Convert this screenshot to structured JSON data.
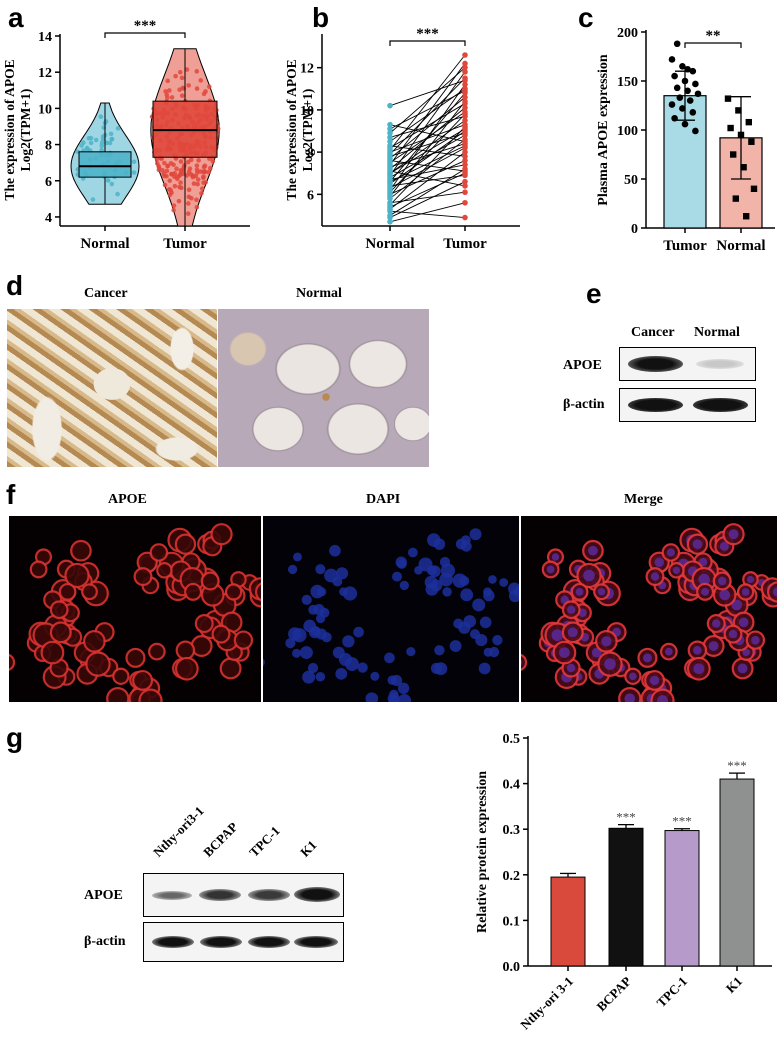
{
  "panels": {
    "a": {
      "letter": "a"
    },
    "b": {
      "letter": "b"
    },
    "c": {
      "letter": "c"
    },
    "d": {
      "letter": "d",
      "col_cancer": "Cancer",
      "col_normal": "Normal"
    },
    "e": {
      "letter": "e",
      "col_cancer": "Cancer",
      "col_normal": "Normal",
      "row_apoe": "APOE",
      "row_actin": "β-actin"
    },
    "f": {
      "letter": "f",
      "titles": [
        "APOE",
        "DAPI",
        "Merge"
      ]
    },
    "g": {
      "letter": "g",
      "lanes": [
        "Nthy-ori3-1",
        "BCPAP",
        "TPC-1",
        "K1"
      ],
      "row_apoe": "APOE",
      "row_actin": "β-actin"
    }
  },
  "colors": {
    "normal_blue": "#4db3c9",
    "tumor_red": "#e0483c",
    "bar_blue": "#a9dbe6",
    "bar_pink": "#f2b3a8",
    "g_red": "#d94a3d",
    "g_black": "#111111",
    "g_purple": "#b69ac9",
    "g_gray": "#8f9090"
  },
  "chart_data": [
    {
      "id": "a",
      "type": "violin-box",
      "ylabel_line1": "The expression of APOE",
      "ylabel_line2": "Log2(TPM+1)",
      "categories": [
        "Normal",
        "Tumor"
      ],
      "ylim": [
        3.5,
        14
      ],
      "yticks": [
        4,
        6,
        8,
        10,
        12,
        14
      ],
      "significance": "***",
      "box": [
        {
          "name": "Normal",
          "min": 4.7,
          "q1": 6.2,
          "median": 6.8,
          "q3": 7.6,
          "max": 10.3
        },
        {
          "name": "Tumor",
          "min": 3.5,
          "q1": 7.3,
          "median": 8.8,
          "q3": 10.4,
          "max": 13.3
        }
      ]
    },
    {
      "id": "b",
      "type": "paired-line",
      "ylabel_line1": "The expression of APOE",
      "ylabel_line2": "Log2(TPM+1)",
      "categories": [
        "Normal",
        "Tumor"
      ],
      "ylim": [
        4.5,
        13.5
      ],
      "yticks": [
        6,
        8,
        10,
        12
      ],
      "significance": "***",
      "pairs": [
        [
          4.7,
          5.6
        ],
        [
          4.9,
          6.6
        ],
        [
          5.0,
          7.2
        ],
        [
          5.2,
          4.9
        ],
        [
          5.3,
          8.0
        ],
        [
          5.4,
          7.0
        ],
        [
          5.5,
          9.2
        ],
        [
          5.6,
          6.1
        ],
        [
          5.8,
          8.6
        ],
        [
          5.9,
          10.4
        ],
        [
          6.0,
          7.6
        ],
        [
          6.1,
          9.8
        ],
        [
          6.2,
          11.2
        ],
        [
          6.3,
          8.2
        ],
        [
          6.4,
          6.9
        ],
        [
          6.5,
          9.0
        ],
        [
          6.6,
          10.8
        ],
        [
          6.7,
          7.4
        ],
        [
          6.8,
          8.8
        ],
        [
          6.9,
          11.8
        ],
        [
          7.0,
          9.5
        ],
        [
          7.1,
          6.4
        ],
        [
          7.2,
          10.1
        ],
        [
          7.3,
          8.4
        ],
        [
          7.4,
          12.2
        ],
        [
          7.5,
          9.9
        ],
        [
          7.6,
          7.1
        ],
        [
          7.7,
          10.6
        ],
        [
          7.8,
          8.9
        ],
        [
          7.9,
          11.5
        ],
        [
          8.0,
          9.3
        ],
        [
          8.1,
          12.6
        ],
        [
          8.2,
          10.3
        ],
        [
          8.3,
          7.8
        ],
        [
          8.5,
          11.0
        ],
        [
          8.7,
          9.7
        ],
        [
          8.9,
          12.0
        ],
        [
          9.1,
          10.9
        ],
        [
          9.3,
          8.5
        ],
        [
          10.2,
          11.4
        ],
        [
          7.0,
          9.1
        ],
        [
          6.6,
          8.3
        ]
      ]
    },
    {
      "id": "c",
      "type": "bar",
      "ylabel": "Plasma APOE expression",
      "categories": [
        "Tumor",
        "Normal"
      ],
      "values": [
        135,
        92
      ],
      "sd": [
        25,
        42
      ],
      "ylim": [
        0,
        200
      ],
      "yticks": [
        0,
        50,
        100,
        150,
        200
      ],
      "significance": "**",
      "points": [
        [
          172,
          165,
          160,
          155,
          150,
          147,
          143,
          140,
          137,
          133,
          130,
          126,
          122,
          118,
          112,
          106,
          99,
          188,
          162
        ],
        [
          132,
          120,
          108,
          102,
          95,
          88,
          75,
          62,
          40,
          30,
          12
        ]
      ]
    },
    {
      "id": "g",
      "type": "bar",
      "ylabel": "Relative protein expression",
      "categories": [
        "Nthy-ori 3-1",
        "BCPAP",
        "TPC-1",
        "K1"
      ],
      "values": [
        0.195,
        0.302,
        0.297,
        0.41
      ],
      "sd": [
        0.008,
        0.008,
        0.004,
        0.013
      ],
      "ylim": [
        0,
        0.5
      ],
      "yticks": [
        0.0,
        0.1,
        0.2,
        0.3,
        0.4,
        0.5
      ],
      "tick_labels": [
        "0.0",
        "0.1",
        "0.2",
        "0.3",
        "0.4",
        "0.5"
      ],
      "significance": [
        "",
        "***",
        "***",
        "***"
      ]
    }
  ]
}
